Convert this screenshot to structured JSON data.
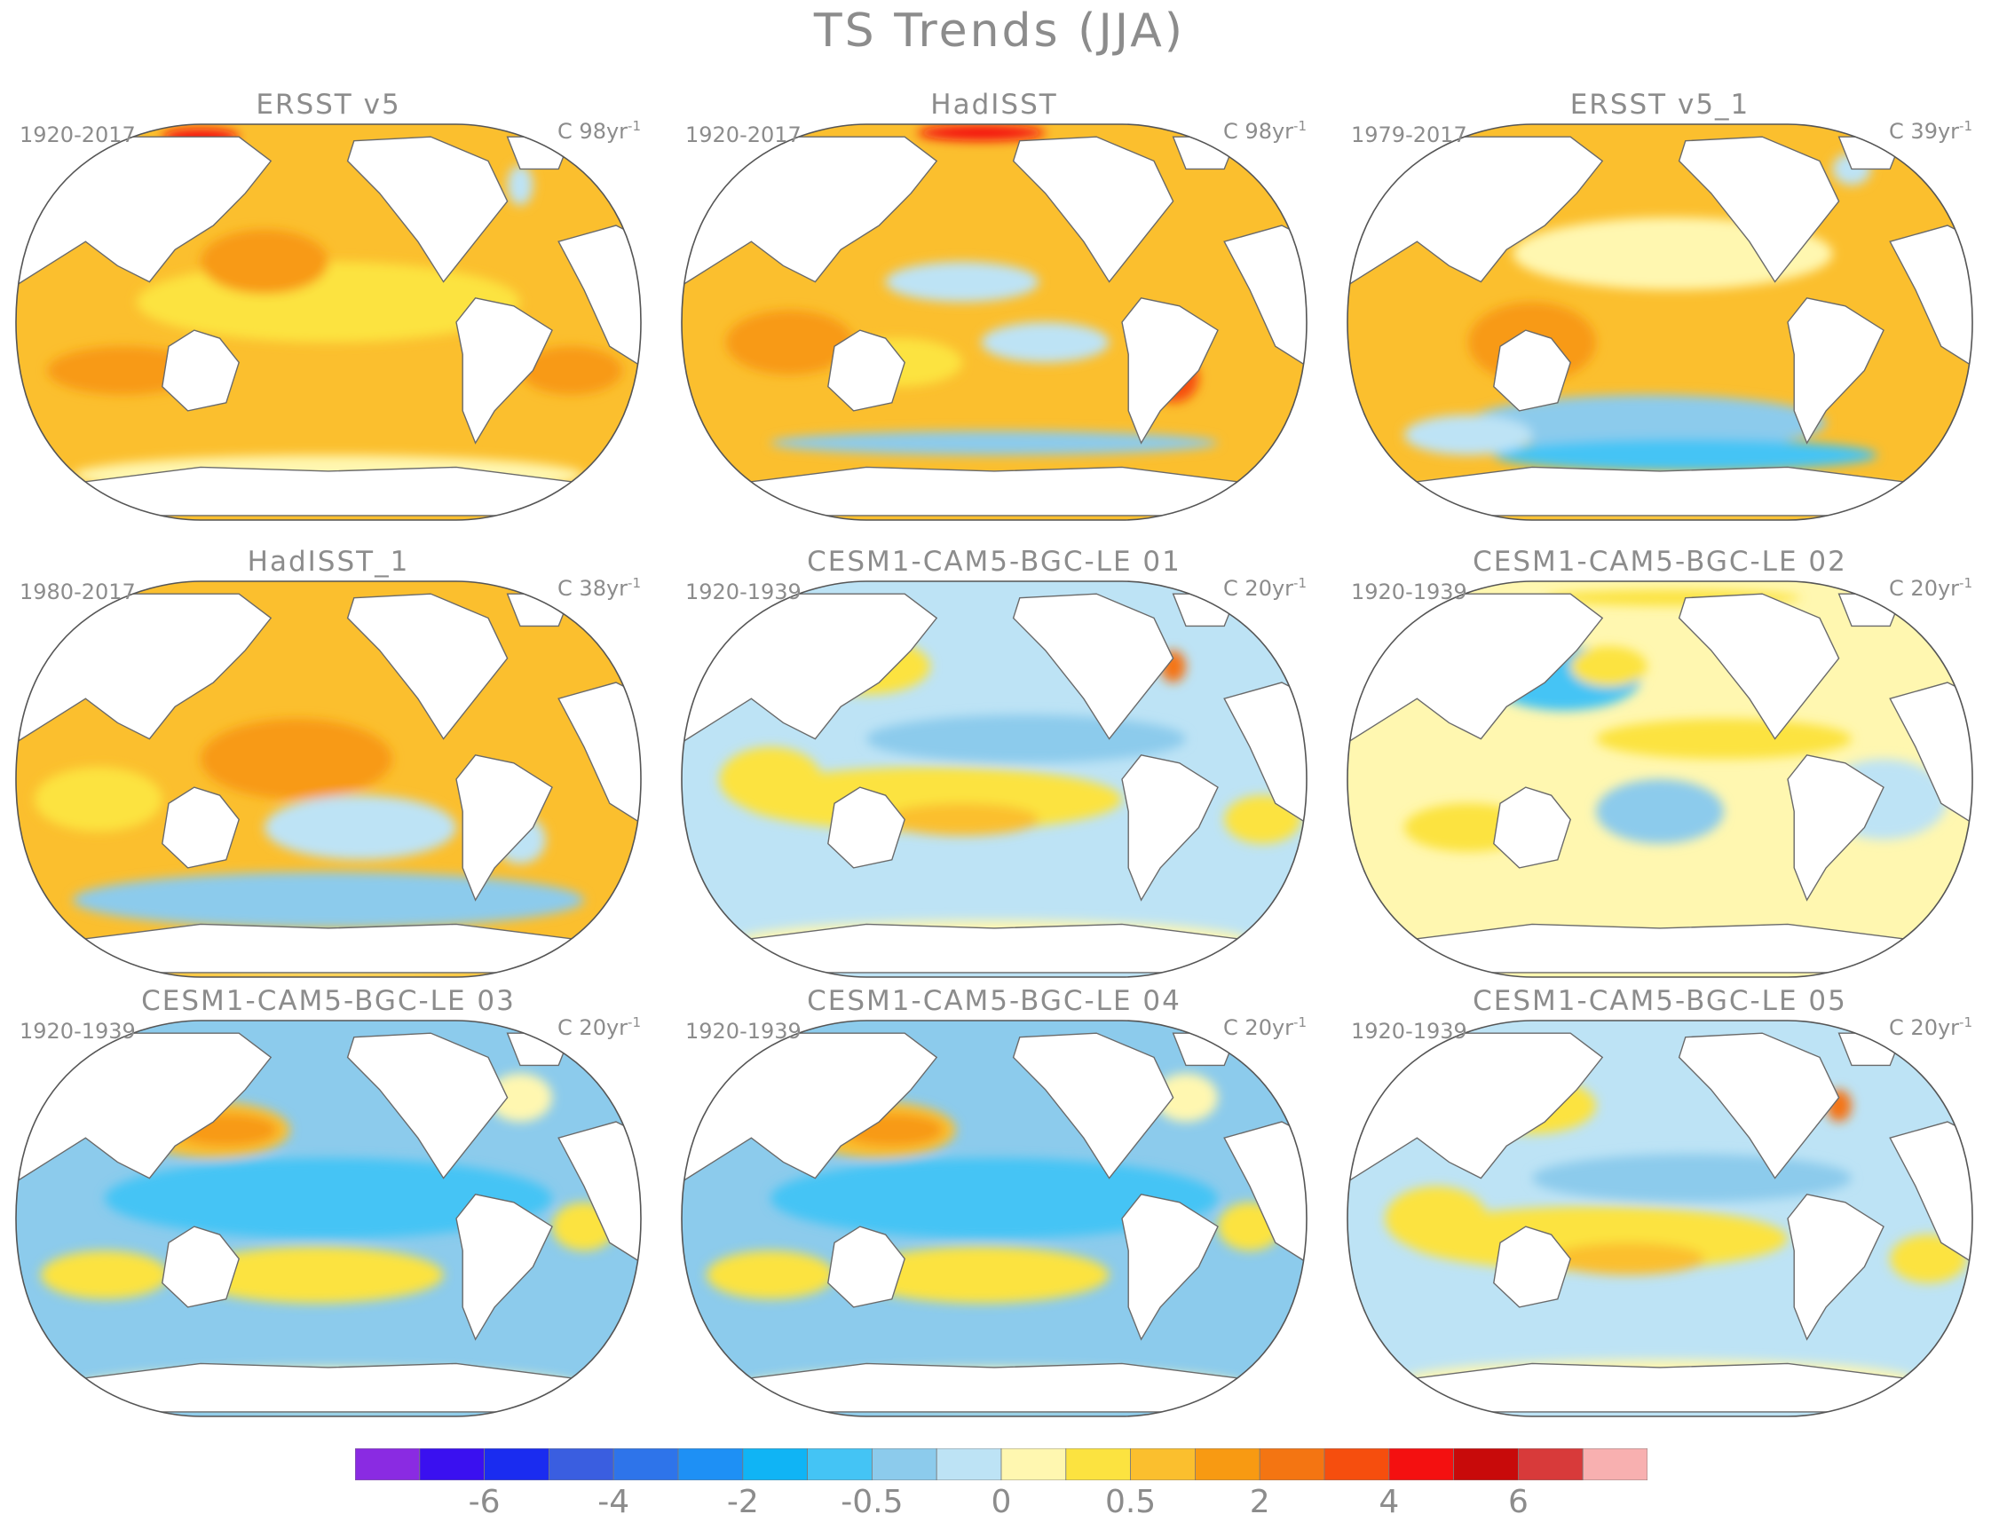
{
  "title": "TS Trends (JJA)",
  "panels": [
    {
      "title": "ERSST v5",
      "period": "1920-2017",
      "units": "C 98yr",
      "units_sup": "-1",
      "pattern": "warm"
    },
    {
      "title": "HadISST",
      "period": "1920-2017",
      "units": "C 98yr",
      "units_sup": "-1",
      "pattern": "warm-noisy"
    },
    {
      "title": "ERSST v5_1",
      "period": "1979-2017",
      "units": "C 39yr",
      "units_sup": "-1",
      "pattern": "warm-south-cool"
    },
    {
      "title": "HadISST_1",
      "period": "1980-2017",
      "units": "C 38yr",
      "units_sup": "-1",
      "pattern": "warm-south-cool-noisy"
    },
    {
      "title": "CESM1-CAM5-BGC-LE 01",
      "period": "1920-1939",
      "units": "C 20yr",
      "units_sup": "-1",
      "pattern": "mixed-cool"
    },
    {
      "title": "CESM1-CAM5-BGC-LE 02",
      "period": "1920-1939",
      "units": "C 20yr",
      "units_sup": "-1",
      "pattern": "mixed-warm"
    },
    {
      "title": "CESM1-CAM5-BGC-LE 03",
      "period": "1920-1939",
      "units": "C 20yr",
      "units_sup": "-1",
      "pattern": "la-nina"
    },
    {
      "title": "CESM1-CAM5-BGC-LE 04",
      "period": "1920-1939",
      "units": "C 20yr",
      "units_sup": "-1",
      "pattern": "la-nina"
    },
    {
      "title": "CESM1-CAM5-BGC-LE 05",
      "period": "1920-1939",
      "units": "C 20yr",
      "units_sup": "-1",
      "pattern": "mixed-cool"
    }
  ],
  "colorbar": {
    "colors": [
      "#8a2be2",
      "#3a10f0",
      "#1a2cf0",
      "#3a5ee0",
      "#2e74ea",
      "#1e90f5",
      "#10b4f5",
      "#44c4f5",
      "#8ccbec",
      "#bde3f5",
      "#fff7b0",
      "#fce340",
      "#fbbf2e",
      "#f89a12",
      "#f47512",
      "#f64e0e",
      "#f41010",
      "#c80a0a",
      "#d83a3a",
      "#f8b0b0"
    ],
    "tick_labels": [
      "-6",
      "-4",
      "-2",
      "-0.5",
      "0",
      "0.5",
      "2",
      "4",
      "6"
    ]
  }
}
